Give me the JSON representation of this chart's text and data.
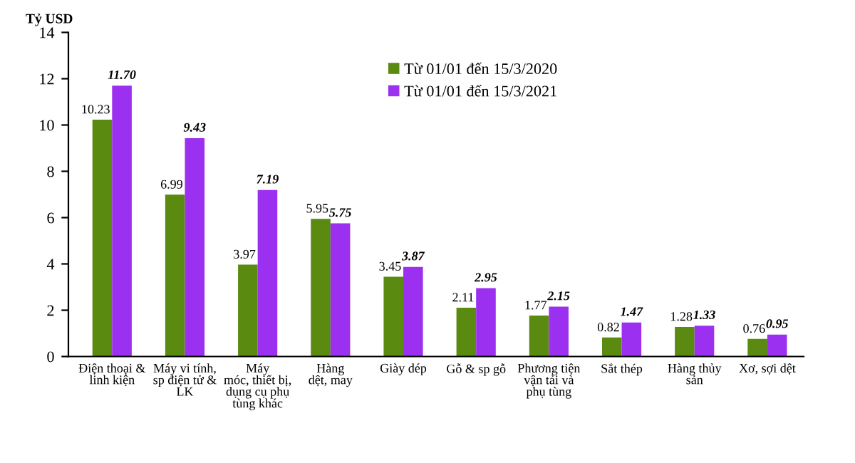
{
  "chart_data": {
    "type": "bar",
    "ylabel": "Tỷ USD",
    "categories": [
      "Điện thoại &\nlinh kiện",
      "Máy vi tính,\nsp điện tử &\nLK",
      "Máy\nmóc, thiết bị,\ndụng cụ phụ\ntùng khác",
      "Hàng\ndệt, may",
      "Giày dép",
      "Gỗ & sp gỗ",
      "Phương tiện\nvận tải và\nphụ tùng",
      "Sắt thép",
      "Hàng thủy\nsản",
      "Xơ, sợi dệt"
    ],
    "series": [
      {
        "name": "Từ 01/01 đến 15/3/2020",
        "color": "#5a8a0f",
        "values": [
          10.23,
          6.99,
          3.97,
          5.95,
          3.45,
          2.11,
          1.77,
          0.82,
          1.28,
          0.76
        ],
        "value_labels": [
          "10.23",
          "6.99",
          "3.97",
          "5.95",
          "3.45",
          "2.11",
          "1.77",
          "0.82",
          "1.28",
          "0.76"
        ]
      },
      {
        "name": "Từ 01/01 đến 15/3/2021",
        "color": "#9b30f0",
        "values": [
          11.7,
          9.43,
          7.19,
          5.75,
          3.87,
          2.95,
          2.15,
          1.47,
          1.33,
          0.95
        ],
        "value_labels": [
          "11.70",
          "9.43",
          "7.19",
          "5.75",
          "3.87",
          "2.95",
          "2.15",
          "1.47",
          "1.33",
          "0.95"
        ]
      }
    ],
    "ylim": [
      0,
      14
    ],
    "yticks": [
      0,
      2,
      4,
      6,
      8,
      10,
      12,
      14
    ],
    "legend": "top",
    "grid": false
  }
}
